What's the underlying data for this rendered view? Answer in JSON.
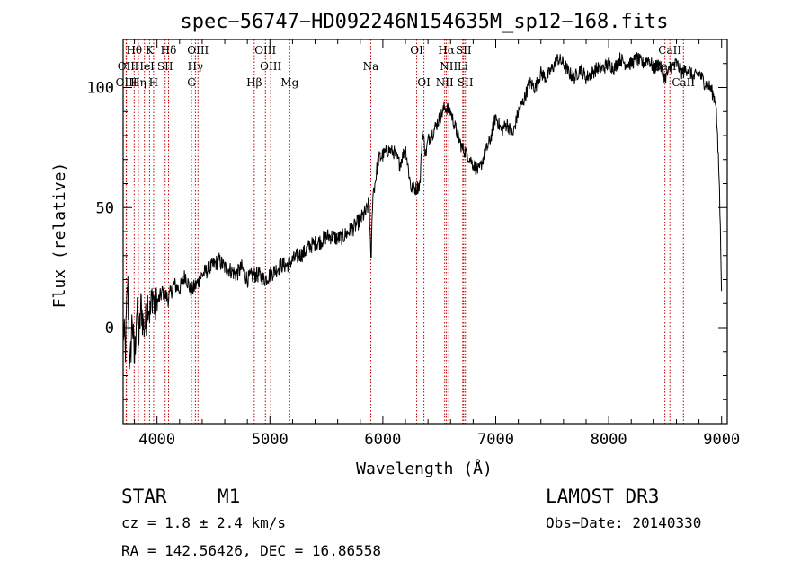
{
  "chart_data": {
    "type": "line",
    "title": "spec−56747−HD092246N154635M_sp12−168.fits",
    "xlabel": "Wavelength (Å)",
    "ylabel": "Flux (relative)",
    "xlim": [
      3700,
      9050
    ],
    "ylim": [
      -40,
      120
    ],
    "x_ticks": [
      4000,
      5000,
      6000,
      7000,
      8000,
      9000
    ],
    "y_ticks": [
      0,
      50,
      100
    ],
    "grid": false,
    "legend": "none",
    "spectrum": {
      "name": "flux",
      "x": [
        3700,
        3720,
        3740,
        3760,
        3780,
        3800,
        3820,
        3840,
        3860,
        3880,
        3900,
        3920,
        3940,
        3960,
        3980,
        4000,
        4050,
        4100,
        4150,
        4200,
        4250,
        4300,
        4350,
        4400,
        4450,
        4500,
        4550,
        4600,
        4650,
        4700,
        4750,
        4800,
        4850,
        4900,
        4950,
        5000,
        5050,
        5100,
        5150,
        5200,
        5250,
        5300,
        5350,
        5400,
        5450,
        5500,
        5550,
        5600,
        5650,
        5700,
        5750,
        5800,
        5850,
        5880,
        5895,
        5910,
        5930,
        5960,
        6000,
        6050,
        6100,
        6150,
        6200,
        6250,
        6300,
        6330,
        6350,
        6380,
        6400,
        6450,
        6500,
        6550,
        6600,
        6650,
        6700,
        6750,
        6800,
        6850,
        6900,
        6950,
        7000,
        7050,
        7100,
        7150,
        7200,
        7250,
        7300,
        7350,
        7400,
        7450,
        7500,
        7550,
        7600,
        7650,
        7700,
        7750,
        7800,
        7850,
        7900,
        7950,
        8000,
        8050,
        8100,
        8150,
        8200,
        8250,
        8300,
        8350,
        8400,
        8450,
        8500,
        8550,
        8600,
        8650,
        8700,
        8750,
        8800,
        8850,
        8900,
        8950,
        8980,
        9000
      ],
      "y": [
        0,
        -10,
        20,
        -20,
        5,
        -15,
        8,
        -5,
        10,
        0,
        2,
        12,
        5,
        15,
        8,
        10,
        15,
        12,
        18,
        16,
        22,
        15,
        18,
        22,
        24,
        26,
        28,
        25,
        24,
        22,
        25,
        20,
        22,
        22,
        20,
        22,
        24,
        26,
        26,
        28,
        30,
        31,
        34,
        35,
        36,
        38,
        38,
        37,
        38,
        40,
        42,
        45,
        48,
        52,
        25,
        55,
        60,
        70,
        72,
        74,
        73,
        68,
        75,
        58,
        58,
        60,
        82,
        72,
        78,
        82,
        87,
        92,
        90,
        82,
        75,
        72,
        68,
        65,
        72,
        78,
        88,
        82,
        85,
        80,
        90,
        95,
        102,
        100,
        106,
        104,
        108,
        112,
        110,
        106,
        104,
        108,
        104,
        106,
        108,
        108,
        110,
        108,
        112,
        110,
        110,
        112,
        110,
        112,
        108,
        110,
        104,
        108,
        110,
        106,
        108,
        104,
        106,
        102,
        100,
        94,
        60,
        15
      ]
    },
    "spectral_lines": [
      {
        "label": "Hθ",
        "wavelength": 3798,
        "row": 0
      },
      {
        "label": "K",
        "wavelength": 3934,
        "row": 0
      },
      {
        "label": "Hδ",
        "wavelength": 4102,
        "row": 0
      },
      {
        "label": "OIII",
        "wavelength": 4363,
        "row": 0
      },
      {
        "label": "OIII",
        "wavelength": 4960,
        "row": 0
      },
      {
        "label": "OI",
        "wavelength": 6300,
        "row": 0
      },
      {
        "label": "Hα",
        "wavelength": 6563,
        "row": 0
      },
      {
        "label": "SII",
        "wavelength": 6716,
        "row": 0
      },
      {
        "label": "CaII",
        "wavelength": 8542,
        "row": 0
      },
      {
        "label": "OII",
        "wavelength": 3727,
        "row": 1
      },
      {
        "label": "HeI",
        "wavelength": 3889,
        "row": 1
      },
      {
        "label": "SII",
        "wavelength": 4072,
        "row": 1
      },
      {
        "label": "Hγ",
        "wavelength": 4340,
        "row": 1
      },
      {
        "label": "OIII",
        "wavelength": 5007,
        "row": 1
      },
      {
        "label": "Na",
        "wavelength": 5893,
        "row": 1
      },
      {
        "label": "NII",
        "wavelength": 6584,
        "row": 1
      },
      {
        "label": "Li",
        "wavelength": 6708,
        "row": 1
      },
      {
        "label": "CaII",
        "wavelength": 8498,
        "row": 1
      },
      {
        "label": "OIII",
        "wavelength": 3729,
        "row": 2
      },
      {
        "label": "Hη",
        "wavelength": 3835,
        "row": 2
      },
      {
        "label": "H",
        "wavelength": 3970,
        "row": 2
      },
      {
        "label": "G",
        "wavelength": 4305,
        "row": 2
      },
      {
        "label": "Hβ",
        "wavelength": 4861,
        "row": 2
      },
      {
        "label": "Mg",
        "wavelength": 5175,
        "row": 2
      },
      {
        "label": "OI",
        "wavelength": 6364,
        "row": 2
      },
      {
        "label": "NII",
        "wavelength": 6548,
        "row": 2
      },
      {
        "label": "SII",
        "wavelength": 6731,
        "row": 2
      },
      {
        "label": "CaII",
        "wavelength": 8662,
        "row": 2
      }
    ]
  },
  "info": {
    "object_class": "STAR",
    "subclass": "M1",
    "survey": "LAMOST DR3",
    "cz": "cz = 1.8 ± 2.4 km/s",
    "obs_date": "Obs−Date: 20140330",
    "radec": "RA = 142.56426, DEC =  16.86558"
  },
  "colors": {
    "spectrum": "#000000",
    "line_markers": "#c00000",
    "axes": "#000000"
  }
}
